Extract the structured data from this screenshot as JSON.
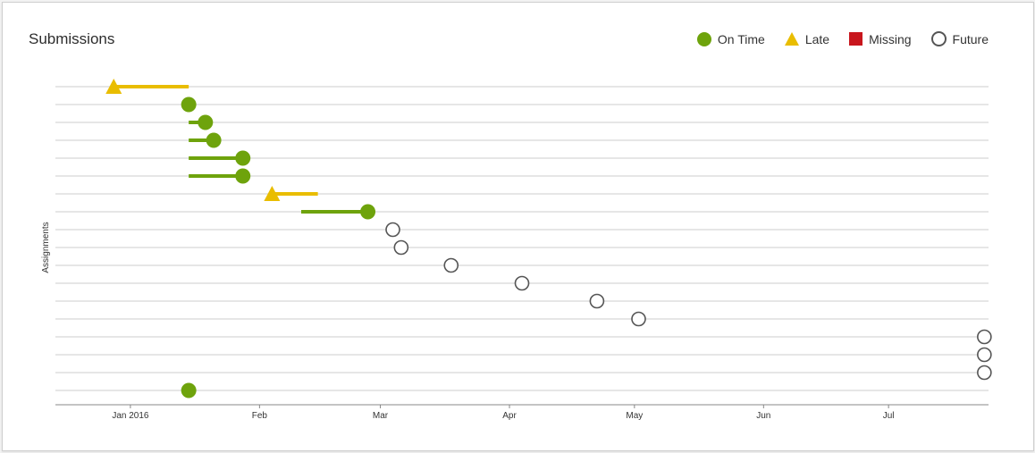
{
  "chart_data": {
    "type": "scatter",
    "title": "Submissions",
    "ylabel": "Assignments",
    "xlabel": "",
    "x_range": [
      "2015-12-14",
      "2016-07-25"
    ],
    "x_ticks": [
      {
        "date": "2016-01-01",
        "label": "Jan 2016"
      },
      {
        "date": "2016-02-01",
        "label": "Feb"
      },
      {
        "date": "2016-03-01",
        "label": "Mar"
      },
      {
        "date": "2016-04-01",
        "label": "Apr"
      },
      {
        "date": "2016-05-01",
        "label": "May"
      },
      {
        "date": "2016-06-01",
        "label": "Jun"
      },
      {
        "date": "2016-07-01",
        "label": "Jul"
      }
    ],
    "legend": {
      "placement": "top-right",
      "items": [
        {
          "key": "ontime",
          "label": "On Time"
        },
        {
          "key": "late",
          "label": "Late"
        },
        {
          "key": "missing",
          "label": "Missing"
        },
        {
          "key": "future",
          "label": "Future"
        }
      ]
    },
    "colors": {
      "ontime": "#6ea30c",
      "late": "#e9bd00",
      "missing": "#c8161d",
      "future": "#555555",
      "grid": "#dddddd",
      "axis": "#888888"
    },
    "grid": true,
    "assignments": [
      {
        "due": "2016-01-15",
        "submitted": "2015-12-28",
        "status": "late"
      },
      {
        "due": "2016-01-15",
        "submitted": "2016-01-15",
        "status": "ontime"
      },
      {
        "due": "2016-01-15",
        "submitted": "2016-01-19",
        "status": "ontime"
      },
      {
        "due": "2016-01-15",
        "submitted": "2016-01-21",
        "status": "ontime"
      },
      {
        "due": "2016-01-15",
        "submitted": "2016-01-28",
        "status": "ontime"
      },
      {
        "due": "2016-01-15",
        "submitted": "2016-01-28",
        "status": "ontime"
      },
      {
        "due": "2016-02-15",
        "submitted": "2016-02-04",
        "status": "late"
      },
      {
        "due": "2016-02-11",
        "submitted": "2016-02-27",
        "status": "ontime"
      },
      {
        "due": "2016-03-04",
        "submitted": null,
        "status": "future"
      },
      {
        "due": "2016-03-06",
        "submitted": null,
        "status": "future"
      },
      {
        "due": "2016-03-18",
        "submitted": null,
        "status": "future"
      },
      {
        "due": "2016-04-04",
        "submitted": null,
        "status": "future"
      },
      {
        "due": "2016-04-22",
        "submitted": null,
        "status": "future"
      },
      {
        "due": "2016-05-02",
        "submitted": null,
        "status": "future"
      },
      {
        "due": "2016-07-24",
        "submitted": null,
        "status": "future"
      },
      {
        "due": "2016-07-24",
        "submitted": null,
        "status": "future"
      },
      {
        "due": "2016-07-24",
        "submitted": null,
        "status": "future"
      },
      {
        "due": "2016-01-15",
        "submitted": "2016-01-15",
        "status": "ontime"
      }
    ]
  }
}
